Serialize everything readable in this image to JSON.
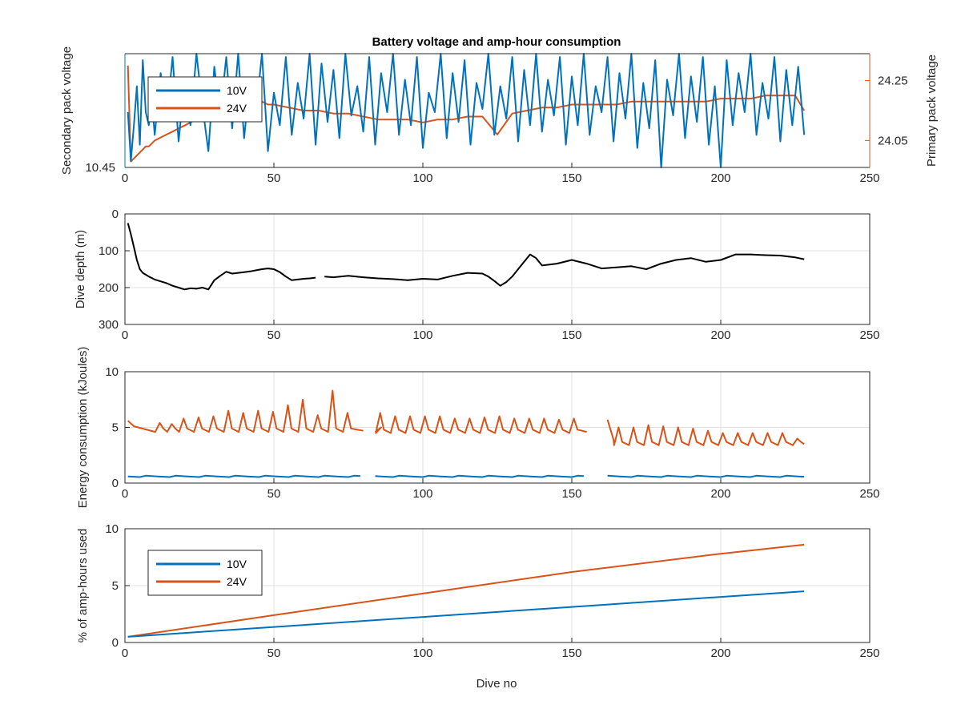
{
  "figure": {
    "title": "Battery voltage and amp-hour consumption",
    "xlabel": "Dive no"
  },
  "colors": {
    "blue": "#0072BD",
    "orange": "#D95319",
    "black": "#000000",
    "grid": "#e0e0e0",
    "axis": "#262626"
  },
  "chart_data": [
    {
      "type": "line",
      "title": "Battery voltage and amp-hour consumption",
      "ylabel_left": "Secondary pack voltage",
      "ylabel_right": "Primary pack voltage",
      "xlim": [
        0,
        250
      ],
      "xticks": [
        0,
        50,
        100,
        150,
        200,
        250
      ],
      "yleft_ticks": [
        "10.45"
      ],
      "yright_ticks": [
        "24.05",
        "24.25"
      ],
      "legend_location": "top-left",
      "legend": [
        "10V",
        "24V"
      ],
      "series": [
        {
          "name": "10V",
          "axis": "left",
          "x": [
            1,
            2,
            3,
            4,
            5,
            6,
            7,
            8,
            9,
            10,
            12,
            14,
            16,
            18,
            20,
            22,
            24,
            26,
            28,
            30,
            32,
            34,
            36,
            38,
            40,
            42,
            44,
            46,
            48,
            50,
            52,
            54,
            56,
            58,
            60,
            62,
            64,
            66,
            68,
            70,
            72,
            74,
            76,
            78,
            80,
            82,
            84,
            86,
            88,
            90,
            92,
            94,
            96,
            98,
            100,
            102,
            104,
            106,
            108,
            110,
            112,
            114,
            116,
            118,
            120,
            122,
            124,
            126,
            128,
            130,
            132,
            134,
            136,
            138,
            140,
            142,
            144,
            146,
            148,
            150,
            152,
            154,
            156,
            158,
            160,
            162,
            164,
            166,
            168,
            170,
            172,
            174,
            176,
            178,
            180,
            182,
            184,
            186,
            188,
            190,
            192,
            194,
            196,
            198,
            200,
            202,
            204,
            206,
            208,
            210,
            212,
            214,
            216,
            218,
            220,
            222,
            224,
            226,
            228
          ],
          "y": [
            10.62,
            10.47,
            10.58,
            10.7,
            10.52,
            10.78,
            10.62,
            10.58,
            10.66,
            10.55,
            10.74,
            10.6,
            10.79,
            10.53,
            10.71,
            10.58,
            10.8,
            10.64,
            10.5,
            10.76,
            10.61,
            10.79,
            10.57,
            10.8,
            10.54,
            10.72,
            10.62,
            10.8,
            10.5,
            10.68,
            10.58,
            10.79,
            10.55,
            10.71,
            10.6,
            10.8,
            10.52,
            10.77,
            10.59,
            10.75,
            10.54,
            10.8,
            10.61,
            10.7,
            10.56,
            10.79,
            10.52,
            10.74,
            10.62,
            10.8,
            10.55,
            10.72,
            10.58,
            10.79,
            10.51,
            10.68,
            10.62,
            10.8,
            10.54,
            10.74,
            10.59,
            10.78,
            10.52,
            10.71,
            10.63,
            10.8,
            10.55,
            10.7,
            10.6,
            10.79,
            10.53,
            10.75,
            10.58,
            10.8,
            10.56,
            10.72,
            10.61,
            10.79,
            10.52,
            10.73,
            10.58,
            10.8,
            10.55,
            10.7,
            10.62,
            10.79,
            10.53,
            10.74,
            10.6,
            10.8,
            10.51,
            10.71,
            10.57,
            10.78,
            10.45,
            10.72,
            10.61,
            10.8,
            10.54,
            10.73,
            10.59,
            10.79,
            10.52,
            10.7,
            10.45,
            10.78,
            10.58,
            10.74,
            10.62,
            10.8,
            10.55,
            10.71,
            10.6,
            10.79,
            10.53,
            10.75,
            10.58,
            10.76,
            10.55
          ]
        },
        {
          "name": "24V",
          "axis": "right",
          "x": [
            1,
            2,
            3,
            4,
            5,
            6,
            7,
            8,
            10,
            12,
            14,
            16,
            18,
            20,
            22,
            24,
            26,
            28,
            30,
            32,
            34,
            36,
            38,
            40,
            42,
            44,
            46,
            48,
            50,
            55,
            60,
            65,
            70,
            75,
            80,
            85,
            90,
            95,
            100,
            105,
            110,
            115,
            120,
            125,
            130,
            135,
            140,
            145,
            150,
            155,
            160,
            165,
            170,
            175,
            180,
            185,
            190,
            195,
            200,
            205,
            210,
            215,
            220,
            225,
            228
          ],
          "y": [
            24.3,
            23.98,
            23.99,
            24.0,
            24.01,
            24.02,
            24.03,
            24.03,
            24.05,
            24.06,
            24.07,
            24.08,
            24.09,
            24.1,
            24.11,
            24.12,
            24.12,
            24.13,
            24.14,
            24.15,
            24.15,
            24.16,
            24.16,
            24.17,
            24.17,
            24.17,
            24.18,
            24.17,
            24.17,
            24.16,
            24.15,
            24.15,
            24.14,
            24.14,
            24.13,
            24.12,
            24.12,
            24.12,
            24.11,
            24.12,
            24.12,
            24.13,
            24.13,
            24.07,
            24.14,
            24.15,
            24.16,
            24.16,
            24.17,
            24.17,
            24.17,
            24.17,
            24.18,
            24.18,
            24.18,
            24.18,
            24.18,
            24.18,
            24.19,
            24.19,
            24.19,
            24.2,
            24.2,
            24.2,
            24.15
          ]
        }
      ]
    },
    {
      "type": "line",
      "ylabel": "Dive depth (m)",
      "xlim": [
        0,
        250
      ],
      "ylim": [
        0,
        300
      ],
      "y_reversed": true,
      "xticks": [
        0,
        50,
        100,
        150,
        200,
        250
      ],
      "yticks": [
        0,
        100,
        200,
        300
      ],
      "grid": "on",
      "series": [
        {
          "segments": [
            {
              "x": [
                1,
                2,
                3,
                4,
                5,
                6,
                7,
                8,
                10,
                12,
                14,
                16,
                18,
                20,
                22,
                24,
                26,
                28,
                30,
                32,
                34,
                36,
                38,
                40,
                42,
                44,
                46,
                48,
                50,
                52,
                54,
                56,
                58,
                60,
                62,
                64
              ],
              "y": [
                25,
                55,
                90,
                125,
                150,
                160,
                165,
                170,
                178,
                183,
                188,
                195,
                200,
                205,
                202,
                203,
                200,
                205,
                180,
                168,
                157,
                162,
                160,
                158,
                156,
                153,
                150,
                148,
                150,
                158,
                170,
                180,
                178,
                176,
                175,
                173
              ]
            },
            {
              "x": [
                67,
                70,
                75,
                80,
                85,
                90,
                95,
                100,
                105,
                110,
                115,
                120,
                122,
                124,
                126,
                128,
                130,
                132,
                134,
                136,
                138,
                140,
                145,
                150,
                155,
                160,
                165,
                170,
                175,
                180,
                185,
                190,
                195,
                200,
                205,
                210,
                215,
                220,
                225,
                228
              ],
              "y": [
                170,
                172,
                168,
                172,
                175,
                177,
                180,
                176,
                178,
                168,
                160,
                162,
                170,
                182,
                195,
                185,
                170,
                150,
                130,
                110,
                120,
                140,
                135,
                125,
                135,
                148,
                145,
                142,
                150,
                135,
                125,
                120,
                130,
                125,
                110,
                110,
                112,
                113,
                118,
                123
              ]
            }
          ]
        }
      ]
    },
    {
      "type": "line",
      "ylabel": "Energy consumption (kJoules)",
      "xlim": [
        0,
        250
      ],
      "ylim": [
        0,
        10
      ],
      "xticks": [
        0,
        50,
        100,
        150,
        200,
        250
      ],
      "yticks": [
        0,
        5,
        10
      ],
      "grid": "on",
      "series": [
        {
          "name": "24V",
          "spike_segments": [
            {
              "x_start": 1,
              "x_end": 80,
              "base": 4.7,
              "start_level": 5.6,
              "peaks_x": [
                12,
                16,
                20,
                25,
                30,
                35,
                40,
                45,
                50,
                55,
                60,
                65,
                70,
                75
              ],
              "peaks_y": [
                5.4,
                5.3,
                5.8,
                5.9,
                6.0,
                6.5,
                6.3,
                6.5,
                6.4,
                7.0,
                7.5,
                6.1,
                8.3,
                6.3
              ]
            },
            {
              "x_start": 84,
              "x_end": 155,
              "base": 4.6,
              "start_level": 4.6,
              "peaks_x": [
                86,
                91,
                96,
                101,
                106,
                111,
                116,
                121,
                126,
                131,
                136,
                141,
                146,
                151
              ],
              "peaks_y": [
                6.3,
                6.0,
                6.0,
                6.0,
                6.0,
                5.8,
                5.8,
                5.9,
                6.0,
                5.8,
                5.8,
                5.8,
                5.7,
                5.8
              ]
            },
            {
              "x_start": 162,
              "x_end": 228,
              "base": 3.5,
              "start_level": 5.7,
              "peaks_x": [
                166,
                171,
                176,
                181,
                186,
                191,
                196,
                201,
                206,
                211,
                216,
                221,
                226
              ],
              "peaks_y": [
                5.0,
                5.0,
                5.2,
                5.1,
                5.0,
                4.9,
                4.7,
                4.5,
                4.5,
                4.5,
                4.5,
                4.5,
                4.0
              ]
            }
          ]
        },
        {
          "name": "10V",
          "segments_x": [
            [
              1,
              80
            ],
            [
              84,
              155
            ],
            [
              162,
              228
            ]
          ],
          "level": 0.6
        }
      ]
    },
    {
      "type": "line",
      "ylabel": "% of amp-hours used",
      "xlim": [
        0,
        250
      ],
      "ylim": [
        0,
        10
      ],
      "xticks": [
        0,
        50,
        100,
        150,
        200,
        250
      ],
      "yticks": [
        0,
        5,
        10
      ],
      "grid": "on",
      "legend_location": "left",
      "legend": [
        "10V",
        "24V"
      ],
      "series": [
        {
          "name": "10V",
          "x": [
            1,
            228
          ],
          "y": [
            0.5,
            4.5
          ]
        },
        {
          "name": "24V",
          "x": [
            1,
            50,
            100,
            150,
            200,
            228
          ],
          "y": [
            0.5,
            2.4,
            4.3,
            6.2,
            7.8,
            8.6
          ]
        }
      ]
    }
  ]
}
